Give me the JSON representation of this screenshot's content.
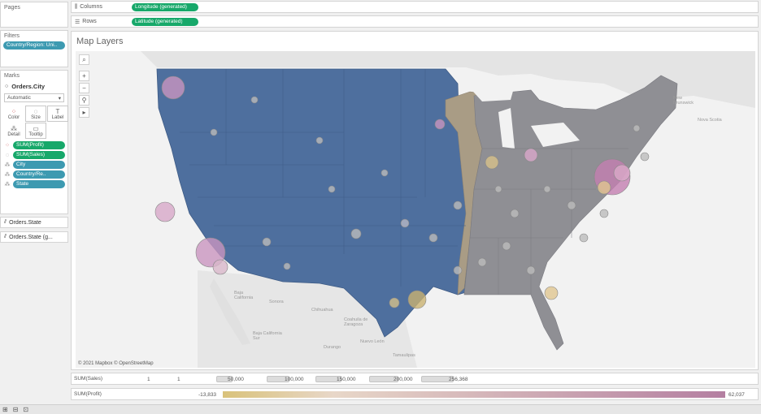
{
  "sidebar": {
    "pages_title": "Pages",
    "filters_title": "Filters",
    "filter_pill": "Country/Region: Uni..",
    "marks_title": "Marks",
    "marks_layer": "Orders.City",
    "mark_type": "Automatic",
    "mark_buttons": [
      {
        "label": "Color",
        "icon": "color-dots-icon"
      },
      {
        "label": "Size",
        "icon": "size-icon"
      },
      {
        "label": "Label",
        "icon": "label-icon"
      },
      {
        "label": "Detail",
        "icon": "detail-icon"
      },
      {
        "label": "Tooltip",
        "icon": "tooltip-icon"
      }
    ],
    "mark_fields": [
      {
        "label": "SUM(Profit)",
        "icon": "color-dots-icon",
        "color": "green"
      },
      {
        "label": "SUM(Sales)",
        "icon": "size-icon",
        "color": "green"
      },
      {
        "label": "City",
        "icon": "detail-icon",
        "color": "blue"
      },
      {
        "label": "Country/Re..",
        "icon": "detail-icon",
        "color": "blue"
      },
      {
        "label": "State",
        "icon": "detail-icon",
        "color": "blue"
      }
    ],
    "layers": [
      "Orders.State",
      "Orders.State (g..."
    ]
  },
  "shelves": {
    "columns_label": "Columns",
    "columns_pill": "Longitude (generated)",
    "rows_label": "Rows",
    "rows_pill": "Latitude (generated)"
  },
  "view": {
    "title": "Map Layers",
    "attribution": "© 2021 Mapbox © OpenStreetMap",
    "tools": [
      "search-icon",
      "zoom-in-icon",
      "zoom-out-icon",
      "pin-icon",
      "play-icon"
    ],
    "tool_glyphs": [
      "⌕",
      "+",
      "−",
      "⚲",
      "▸"
    ],
    "geo_labels": [
      {
        "text": "New\nBrunswick"
      },
      {
        "text": "Nova Scotia"
      },
      {
        "text": "Baja\nCalifornia"
      },
      {
        "text": "Sonora"
      },
      {
        "text": "Chihuahua"
      },
      {
        "text": "Coahuila de\nZaragoza"
      },
      {
        "text": "Nuevo León"
      },
      {
        "text": "Tamaulipas"
      },
      {
        "text": "Baja California\nSur"
      },
      {
        "text": "Durango"
      }
    ]
  },
  "legend_sales": {
    "label": "SUM(Sales)",
    "items": [
      "1",
      "1",
      "50,000",
      "100,000",
      "150,000",
      "200,000",
      "256,368"
    ]
  },
  "legend_profit": {
    "label": "SUM(Profit)",
    "min": "-13,833",
    "max": "62,037",
    "colors": {
      "low": "#d9c27a",
      "mid": "#e8d7c8",
      "high": "#b47fa1"
    }
  },
  "colors": {
    "pill_green": "#17a86a",
    "pill_blue": "#3d9ab1",
    "state_blue": "#4e6f9e",
    "state_gray": "#8f8f94",
    "state_tan": "#a99c85"
  },
  "bottom_bar_icons": [
    "new-sheet-icon",
    "new-dashboard-icon",
    "new-story-icon"
  ],
  "bottom_bar_glyphs": [
    "⊞",
    "⊟",
    "⊡"
  ]
}
